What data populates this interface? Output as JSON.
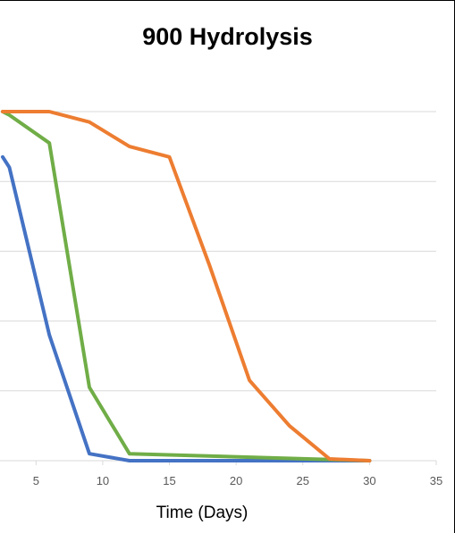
{
  "chart_data": {
    "type": "line",
    "title": "900 Hydrolysis",
    "xlabel": "Time (Days)",
    "ylabel": "",
    "xlim": [
      2.5,
      35
    ],
    "ylim": [
      0,
      100
    ],
    "xticks": [
      "5",
      "10",
      "15",
      "20",
      "25",
      "30",
      "35"
    ],
    "grid": true,
    "series": [
      {
        "color": "#4472C4",
        "x": [
          2.5,
          3,
          6,
          9,
          12,
          30
        ],
        "values": [
          87,
          84,
          36,
          2,
          0,
          0
        ]
      },
      {
        "color": "#70AD47",
        "x": [
          2.5,
          3,
          6,
          9,
          12,
          30
        ],
        "values": [
          100,
          99,
          91,
          21,
          2,
          0
        ]
      },
      {
        "color": "#ED7D31",
        "x": [
          2.5,
          6,
          9,
          12,
          15,
          18,
          21,
          24,
          27,
          30
        ],
        "values": [
          100,
          100,
          97,
          90,
          87,
          56,
          23,
          10,
          0.5,
          0
        ]
      }
    ]
  }
}
